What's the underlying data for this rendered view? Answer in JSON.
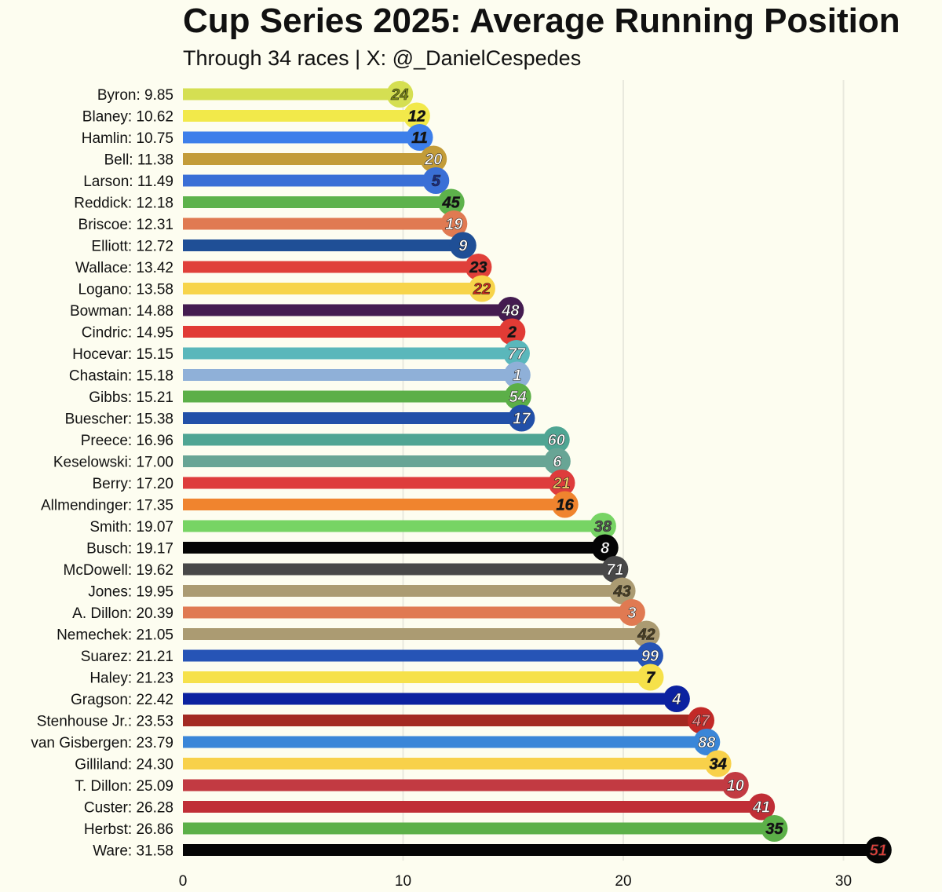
{
  "chart_data": {
    "type": "bar",
    "orientation": "horizontal",
    "title": "Cup Series 2025: Average Running Position",
    "subtitle": "Through 34 races | X: @_DanielCespedes",
    "xlim": [
      0,
      32
    ],
    "xticks": [
      0,
      10,
      20,
      30
    ],
    "grid": true,
    "legend": "none",
    "rows": [
      {
        "label": "Byron:  9.85",
        "value": 9.85,
        "number": "24",
        "color": "#d5df52",
        "badge_bg": "#d5df52",
        "badge_fg": "#7c8a12"
      },
      {
        "label": "Blaney: 10.62",
        "value": 10.62,
        "number": "12",
        "color": "#f2e94a",
        "badge_bg": "#f2e94a",
        "badge_fg": "#111111"
      },
      {
        "label": "Hamlin: 10.75",
        "value": 10.75,
        "number": "11",
        "color": "#3d7fea",
        "badge_bg": "#3d7fea",
        "badge_fg": "#111111"
      },
      {
        "label": "Bell: 11.38",
        "value": 11.38,
        "number": "20",
        "color": "#c39c38",
        "badge_bg": "#c39c38",
        "badge_fg": "#ffffff"
      },
      {
        "label": "Larson: 11.49",
        "value": 11.49,
        "number": "5",
        "color": "#3a6fd6",
        "badge_bg": "#3a6fd6",
        "badge_fg": "#1a2a80"
      },
      {
        "label": "Reddick: 12.18",
        "value": 12.18,
        "number": "45",
        "color": "#5db24b",
        "badge_bg": "#5db24b",
        "badge_fg": "#111111"
      },
      {
        "label": "Briscoe: 12.31",
        "value": 12.31,
        "number": "19",
        "color": "#e07a52",
        "badge_bg": "#e07a52",
        "badge_fg": "#ffffff"
      },
      {
        "label": "Elliott: 12.72",
        "value": 12.72,
        "number": "9",
        "color": "#1f4f96",
        "badge_bg": "#1f4f96",
        "badge_fg": "#ffffff"
      },
      {
        "label": "Wallace: 13.42",
        "value": 13.42,
        "number": "23",
        "color": "#e0403a",
        "badge_bg": "#e0403a",
        "badge_fg": "#111111"
      },
      {
        "label": "Logano: 13.58",
        "value": 13.58,
        "number": "22",
        "color": "#f7d44a",
        "badge_bg": "#f7d44a",
        "badge_fg": "#d0281c"
      },
      {
        "label": "Bowman: 14.88",
        "value": 14.88,
        "number": "48",
        "color": "#441c50",
        "badge_bg": "#441c50",
        "badge_fg": "#ffffff"
      },
      {
        "label": "Cindric: 14.95",
        "value": 14.95,
        "number": "2",
        "color": "#e13b35",
        "badge_bg": "#e13b35",
        "badge_fg": "#111111"
      },
      {
        "label": "Hocevar: 15.15",
        "value": 15.15,
        "number": "77",
        "color": "#5ab7bb",
        "badge_bg": "#5ab7bb",
        "badge_fg": "#ffffff"
      },
      {
        "label": "Chastain: 15.18",
        "value": 15.18,
        "number": "1",
        "color": "#8fb0d8",
        "badge_bg": "#8fb0d8",
        "badge_fg": "#ffffff"
      },
      {
        "label": "Gibbs: 15.21",
        "value": 15.21,
        "number": "54",
        "color": "#5caf48",
        "badge_bg": "#5caf48",
        "badge_fg": "#ffffff"
      },
      {
        "label": "Buescher: 15.38",
        "value": 15.38,
        "number": "17",
        "color": "#2250a8",
        "badge_bg": "#2250a8",
        "badge_fg": "#ffffff"
      },
      {
        "label": "Preece: 16.96",
        "value": 16.96,
        "number": "60",
        "color": "#4fa593",
        "badge_bg": "#4fa593",
        "badge_fg": "#ffffff"
      },
      {
        "label": "Keselowski: 17.00",
        "value": 17.0,
        "number": "6",
        "color": "#68a595",
        "badge_bg": "#68a595",
        "badge_fg": "#ffffff"
      },
      {
        "label": "Berry: 17.20",
        "value": 17.2,
        "number": "21",
        "color": "#de3c3c",
        "badge_bg": "#de3c3c",
        "badge_fg": "#f2d36a"
      },
      {
        "label": "Allmendinger: 17.35",
        "value": 17.35,
        "number": "16",
        "color": "#f0842e",
        "badge_bg": "#f0842e",
        "badge_fg": "#111111"
      },
      {
        "label": "Smith: 19.07",
        "value": 19.07,
        "number": "38",
        "color": "#77d464",
        "badge_bg": "#77d464",
        "badge_fg": "#555555"
      },
      {
        "label": "Busch: 19.17",
        "value": 19.17,
        "number": "8",
        "color": "#050505",
        "badge_bg": "#050505",
        "badge_fg": "#ffffff"
      },
      {
        "label": "McDowell: 19.62",
        "value": 19.62,
        "number": "71",
        "color": "#484848",
        "badge_bg": "#484848",
        "badge_fg": "#ffffff"
      },
      {
        "label": "Jones: 19.95",
        "value": 19.95,
        "number": "43",
        "color": "#ab9b72",
        "badge_bg": "#ab9b72",
        "badge_fg": "#4a3f22"
      },
      {
        "label": "A. Dillon: 20.39",
        "value": 20.39,
        "number": "3",
        "color": "#e07a52",
        "badge_bg": "#e07a52",
        "badge_fg": "#ffffff"
      },
      {
        "label": "Nemechek: 21.05",
        "value": 21.05,
        "number": "42",
        "color": "#ab9b72",
        "badge_bg": "#ab9b72",
        "badge_fg": "#4a3f22"
      },
      {
        "label": "Suarez: 21.21",
        "value": 21.21,
        "number": "99",
        "color": "#2654b6",
        "badge_bg": "#2654b6",
        "badge_fg": "#ffffff"
      },
      {
        "label": "Haley: 21.23",
        "value": 21.23,
        "number": "7",
        "color": "#f6e14a",
        "badge_bg": "#f6e14a",
        "badge_fg": "#111111"
      },
      {
        "label": "Gragson: 22.42",
        "value": 22.42,
        "number": "4",
        "color": "#0c22a0",
        "badge_bg": "#0c22a0",
        "badge_fg": "#ffffff"
      },
      {
        "label": "Stenhouse Jr.: 23.53",
        "value": 23.53,
        "number": "47",
        "color": "#a32a22",
        "badge_bg": "#c22a28",
        "badge_fg": "#f08f8f"
      },
      {
        "label": "van Gisbergen: 23.79",
        "value": 23.79,
        "number": "88",
        "color": "#3a86d8",
        "badge_bg": "#3a86d8",
        "badge_fg": "#ffffff"
      },
      {
        "label": "Gilliland: 24.30",
        "value": 24.3,
        "number": "34",
        "color": "#f8d14a",
        "badge_bg": "#f8d14a",
        "badge_fg": "#111111"
      },
      {
        "label": "T. Dillon: 25.09",
        "value": 25.09,
        "number": "10",
        "color": "#c23a42",
        "badge_bg": "#c23a42",
        "badge_fg": "#ffffff"
      },
      {
        "label": "Custer: 26.28",
        "value": 26.28,
        "number": "41",
        "color": "#c02e36",
        "badge_bg": "#c02e36",
        "badge_fg": "#ffffff"
      },
      {
        "label": "Herbst: 26.86",
        "value": 26.86,
        "number": "35",
        "color": "#5cb048",
        "badge_bg": "#5cb048",
        "badge_fg": "#111111"
      },
      {
        "label": "Ware: 31.58",
        "value": 31.58,
        "number": "51",
        "color": "#050505",
        "badge_bg": "#050505",
        "badge_fg": "#e0403a"
      }
    ]
  }
}
